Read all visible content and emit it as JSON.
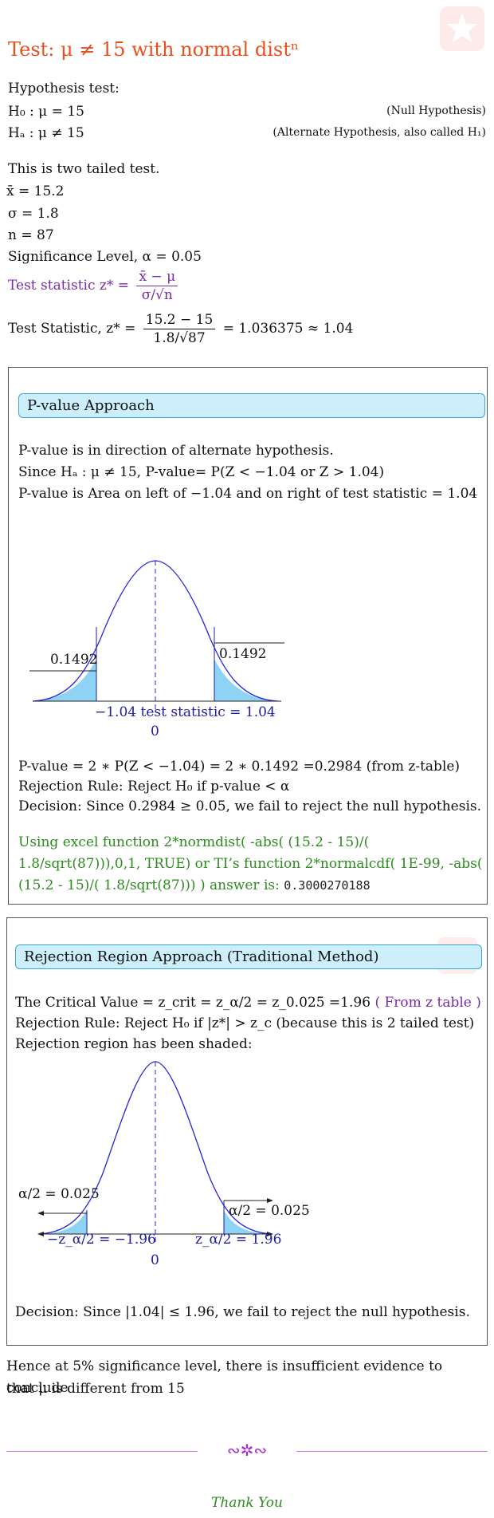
{
  "title": "Test: μ ≠ 15 with normal distⁿ",
  "hypothesis": {
    "heading": "Hypothesis test:",
    "h0": "H₀ : μ = 15",
    "h0_note": "(Null Hypothesis)",
    "ha": "Hₐ : μ ≠ 15",
    "ha_note": "(Alternate Hypothesis, also called H₁)"
  },
  "stats": {
    "tail_text": "This is two tailed test.",
    "xbar": "x̄ = 15.2",
    "sigma": "σ = 1.8",
    "n": "n = 87",
    "alpha": "Significance Level, α = 0.05",
    "formula_label": "Test statistic z* =",
    "formula_num": "x̄ − μ",
    "formula_den": "σ/√n",
    "ts_label": "Test Statistic, z* =",
    "ts_num": "15.2 − 15",
    "ts_den": "1.8/√87",
    "ts_value": "= 1.036375 ≈ 1.04"
  },
  "pvalue": {
    "header": "P-value Approach",
    "line1": "P-value is in direction of alternate hypothesis.",
    "line2": "Since Hₐ : μ ≠ 15, P-value= P(Z < −1.04 or Z > 1.04)",
    "line3": "P-value is Area on left of −1.04 and on right of test statistic = 1.04",
    "chart": {
      "left_area": "0.1492",
      "right_area": "0.1492",
      "axis_label": "−1.04 test statistic = 1.04",
      "zero": "0"
    },
    "calc": "P-value = 2 ∗ P(Z < −1.04) = 2 ∗ 0.1492 =0.2984 (from z-table)",
    "rule": "Rejection Rule: Reject H₀ if p-value < α",
    "decision": "Decision: Since 0.2984 ≥ 0.05, we fail to reject the null hypothesis.",
    "excel_l1": "Using excel function 2*normdist( -abs( (15.2 - 15)/(",
    "excel_l2": "1.8/sqrt(87))),0,1, TRUE) or TI’s function 2*normalcdf( 1E-99, -abs(",
    "excel_l3": "(15.2 - 15)/( 1.8/sqrt(87))) ) answer is:",
    "excel_answer": "0.3000270188"
  },
  "rejection": {
    "header": "Rejection Region Approach (Traditional Method)",
    "crit_text": "The Critical Value = z_crit = z_α/2 = z_0.025 =1.96",
    "crit_ref": "( From z table )",
    "rule": "Rejection Rule: Reject H₀ if |z*| > z_c (because this is 2 tailed test)",
    "shaded": "Rejection region has been shaded:",
    "chart": {
      "left_alpha": "α/2 = 0.025",
      "right_alpha": "α/2 = 0.025",
      "left_z": "−z_α/2 = −1.96",
      "right_z": "z_α/2 = 1.96",
      "zero": "0"
    },
    "decision": "Decision: Since |1.04| ≤ 1.96, we fail to reject the null hypothesis."
  },
  "conclusion": {
    "line1": "Hence at 5% significance level, there is insufficient evidence to conclude",
    "line2": "that μ is different from 15"
  },
  "footer": {
    "ornament": "∾✲∾",
    "thanks": "Thank You"
  },
  "colors": {
    "title": "#e8501e",
    "purple": "#7a2aa6",
    "green": "#2d8a1e",
    "shade": "#8fd3f4",
    "curve": "#2626d9"
  }
}
